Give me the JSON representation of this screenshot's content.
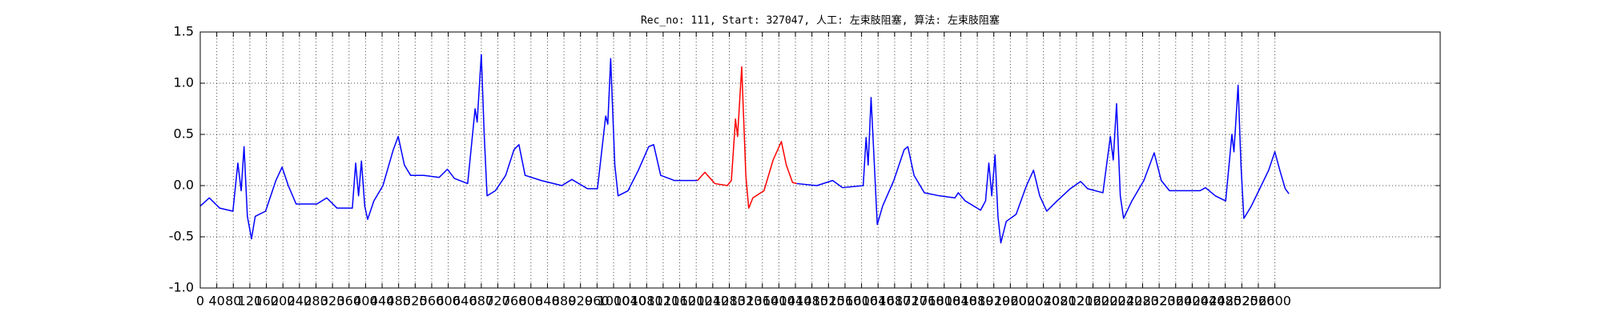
{
  "chart_data": {
    "type": "line",
    "title": "Rec_no: 111, Start: 327047, 人工: 左束肢阻塞, 算法: 左束肢阻塞",
    "xlim": [
      0,
      3000
    ],
    "ylim": [
      -1,
      1.5
    ],
    "xticks": [
      0,
      40,
      80,
      120,
      160,
      200,
      240,
      280,
      320,
      360,
      400,
      440,
      480,
      520,
      560,
      600,
      640,
      680,
      720,
      760,
      800,
      840,
      880,
      920,
      960,
      1000,
      1040,
      1080,
      1120,
      1160,
      1200,
      1240,
      1280,
      1320,
      1360,
      1400,
      1440,
      1480,
      1520,
      1560,
      1600,
      1640,
      1680,
      1720,
      1760,
      1800,
      1840,
      1880,
      1920,
      1960,
      2000,
      2040,
      2080,
      2120,
      2160,
      2200,
      2240,
      2280,
      2320,
      2360,
      2400,
      2440,
      2480,
      2520,
      2560,
      2600
    ],
    "yticks": [
      {
        "value": -1,
        "label": "-1.0"
      },
      -0.5,
      {
        "value": 0,
        "label": "0.0"
      },
      0.5,
      {
        "value": 1,
        "label": "1.0"
      },
      1.5
    ],
    "grid": true,
    "series": [
      {
        "color": "#0000ff",
        "x": [
          0,
          22,
          47,
          79,
          91,
          99,
          106,
          114,
          124,
          133,
          158,
          183,
          198,
          213,
          232,
          282,
          306,
          331,
          368,
          376,
          383,
          390,
          398,
          405,
          420,
          442,
          467,
          479,
          494,
          509,
          541,
          578,
          598,
          615,
          647,
          665,
          670,
          680,
          687,
          694,
          714,
          739,
          759,
          771,
          786,
          825,
          875,
          899,
          937,
          961,
          981,
          986,
          993,
          1003,
          1011,
          1035,
          1060,
          1085,
          1097,
          1114,
          1147,
          1203,
          1320,
          1443,
          1492,
          1530,
          1554,
          1604,
          1611,
          1616,
          1623,
          1631,
          1638,
          1651,
          1678,
          1703,
          1712,
          1727,
          1752,
          1789,
          1826,
          1834,
          1851,
          1888,
          1900,
          1908,
          1915,
          1923,
          1930,
          1937,
          1950,
          1974,
          1999,
          2016,
          2031,
          2048,
          2073,
          2105,
          2130,
          2147,
          2184,
          2202,
          2209,
          2217,
          2226,
          2234,
          2254,
          2283,
          2308,
          2325,
          2345,
          2382,
          2419,
          2432,
          2456,
          2481,
          2496,
          2501,
          2511,
          2518,
          2525,
          2543,
          2567,
          2585,
          2600,
          2612,
          2625,
          2634
        ],
        "values": [
          -0.2,
          -0.12,
          -0.22,
          -0.25,
          0.22,
          -0.05,
          0.38,
          -0.3,
          -0.52,
          -0.3,
          -0.25,
          0.05,
          0.18,
          0.0,
          -0.18,
          -0.18,
          -0.12,
          -0.22,
          -0.22,
          0.22,
          -0.1,
          0.24,
          -0.2,
          -0.33,
          -0.15,
          0.0,
          0.35,
          0.48,
          0.2,
          0.1,
          0.1,
          0.08,
          0.16,
          0.07,
          0.02,
          0.75,
          0.62,
          1.28,
          0.5,
          -0.1,
          -0.05,
          0.1,
          0.35,
          0.4,
          0.1,
          0.05,
          0.0,
          0.06,
          -0.03,
          -0.03,
          0.68,
          0.6,
          1.24,
          0.2,
          -0.1,
          -0.05,
          0.15,
          0.38,
          0.4,
          0.1,
          0.05,
          0.05,
          null,
          0.02,
          0.0,
          0.05,
          -0.02,
          0.0,
          0.47,
          0.2,
          0.86,
          0.2,
          -0.38,
          -0.2,
          0.05,
          0.35,
          0.38,
          0.1,
          -0.07,
          -0.1,
          -0.12,
          -0.07,
          -0.15,
          -0.24,
          -0.15,
          0.22,
          -0.1,
          0.3,
          -0.3,
          -0.56,
          -0.35,
          -0.28,
          0.0,
          0.15,
          -0.1,
          -0.25,
          -0.15,
          -0.03,
          0.04,
          -0.03,
          -0.07,
          0.48,
          0.25,
          0.8,
          -0.1,
          -0.32,
          -0.15,
          0.05,
          0.32,
          0.05,
          -0.05,
          -0.05,
          -0.05,
          -0.02,
          -0.1,
          -0.15,
          0.5,
          0.33,
          0.98,
          0.2,
          -0.32,
          -0.2,
          0.0,
          0.15,
          0.33,
          0.15,
          -0.03,
          -0.08
        ]
      },
      {
        "color": "#ff0000",
        "x": [
          1203,
          1221,
          1245,
          1275,
          1285,
          1295,
          1300,
          1310,
          1320,
          1327,
          1337,
          1364,
          1386,
          1406,
          1418,
          1433,
          1443
        ],
        "values": [
          0.05,
          0.13,
          0.02,
          0.0,
          0.05,
          0.65,
          0.48,
          1.16,
          0.1,
          -0.22,
          -0.12,
          -0.05,
          0.25,
          0.43,
          0.2,
          0.03,
          0.02
        ]
      }
    ]
  }
}
